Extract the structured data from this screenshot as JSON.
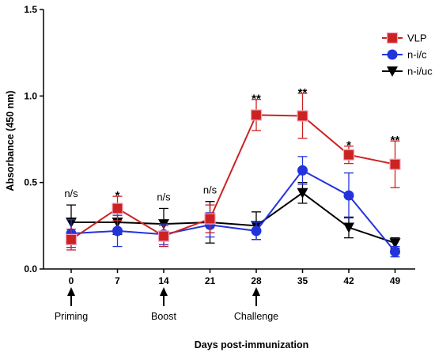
{
  "chart_data": {
    "type": "line",
    "xlabel": "Days post-immunization",
    "ylabel": "Absorbance (450 nm)",
    "ylim": [
      0.0,
      1.5
    ],
    "y_ticks": [
      "0.0",
      "0.5",
      "1.0",
      "1.5"
    ],
    "x": [
      0,
      7,
      14,
      21,
      28,
      35,
      42,
      49
    ],
    "x_ticks": [
      "0",
      "7",
      "14",
      "21",
      "28",
      "35",
      "42",
      "49"
    ],
    "grid": false,
    "legend_position": "top-right",
    "series": [
      {
        "name": "VLP",
        "color": "#cc2222",
        "marker": "square",
        "values": [
          0.17,
          0.35,
          0.19,
          0.29,
          0.89,
          0.885,
          0.66,
          0.605
        ],
        "errors": [
          0.06,
          0.07,
          0.06,
          0.08,
          0.09,
          0.13,
          0.05,
          0.135
        ]
      },
      {
        "name": "n-i/c",
        "color": "#2233dd",
        "marker": "circle",
        "values": [
          0.205,
          0.22,
          0.2,
          0.255,
          0.22,
          0.57,
          0.425,
          0.1
        ],
        "errors": [
          0.08,
          0.09,
          0.06,
          0.07,
          0.05,
          0.08,
          0.13,
          0.03
        ]
      },
      {
        "name": "n-i/uc",
        "color": "#000000",
        "marker": "triangle-down",
        "values": [
          0.27,
          0.27,
          0.26,
          0.27,
          0.25,
          0.44,
          0.24,
          0.15
        ],
        "errors": [
          0.1,
          0.07,
          0.09,
          0.12,
          0.08,
          0.06,
          0.06,
          0.03
        ]
      }
    ],
    "significance": [
      {
        "x": 0,
        "label": "n/s"
      },
      {
        "x": 7,
        "label": "*"
      },
      {
        "x": 14,
        "label": "n/s"
      },
      {
        "x": 21,
        "label": "n/s"
      },
      {
        "x": 28,
        "label": "**"
      },
      {
        "x": 35,
        "label": "**"
      },
      {
        "x": 42,
        "label": "*"
      },
      {
        "x": 49,
        "label": "**"
      }
    ],
    "events": [
      {
        "x": 0,
        "label": "Priming"
      },
      {
        "x": 14,
        "label": "Boost"
      },
      {
        "x": 28,
        "label": "Challenge"
      }
    ]
  }
}
